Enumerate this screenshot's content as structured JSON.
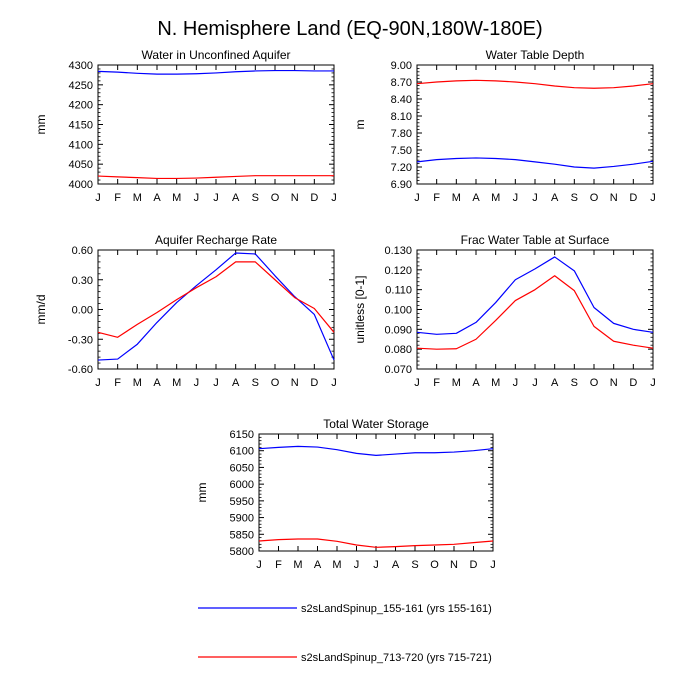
{
  "page_title": "N. Hemisphere Land (EQ-90N,180W-180E)",
  "colors": {
    "series_1": "#0000ff",
    "series_2": "#ff0000",
    "axis": "#000000"
  },
  "chart_data": [
    {
      "type": "line",
      "title": "Water in Unconfined Aquifer",
      "ylabel": "mm",
      "categories": [
        "J",
        "F",
        "M",
        "A",
        "M",
        "J",
        "J",
        "A",
        "S",
        "O",
        "N",
        "D",
        "J"
      ],
      "ylim": [
        4000,
        4300
      ],
      "yticks": [
        4000,
        4050,
        4100,
        4150,
        4200,
        4250,
        4300
      ],
      "ytick_labels": [
        "4000",
        "4050",
        "4100",
        "4150",
        "4200",
        "4250",
        "4300"
      ],
      "series": [
        {
          "name": "s2sLandSpinup_155-161 (yrs 155-161)",
          "color": "#0000ff",
          "values": [
            4284,
            4282,
            4279,
            4277,
            4277,
            4278,
            4280,
            4283,
            4285,
            4286,
            4286,
            4285,
            4285
          ]
        },
        {
          "name": "s2sLandSpinup_713-720 (yrs 715-721)",
          "color": "#ff0000",
          "values": [
            4020,
            4018,
            4016,
            4014,
            4014,
            4015,
            4017,
            4019,
            4021,
            4021,
            4021,
            4021,
            4021
          ]
        }
      ]
    },
    {
      "type": "line",
      "title": "Water Table Depth",
      "ylabel": "m",
      "categories": [
        "J",
        "F",
        "M",
        "A",
        "M",
        "J",
        "J",
        "A",
        "S",
        "O",
        "N",
        "D",
        "J"
      ],
      "ylim": [
        6.9,
        9.0
      ],
      "yticks": [
        6.9,
        7.2,
        7.5,
        7.8,
        8.1,
        8.4,
        8.7,
        9.0
      ],
      "ytick_labels": [
        "6.90",
        "7.20",
        "7.50",
        "7.80",
        "8.10",
        "8.40",
        "8.70",
        "9.00"
      ],
      "series": [
        {
          "name": "s2sLandSpinup_155-161 (yrs 155-161)",
          "color": "#0000ff",
          "values": [
            7.29,
            7.33,
            7.35,
            7.36,
            7.35,
            7.33,
            7.29,
            7.25,
            7.2,
            7.18,
            7.21,
            7.25,
            7.3
          ]
        },
        {
          "name": "s2sLandSpinup_713-720 (yrs 715-721)",
          "color": "#ff0000",
          "values": [
            8.67,
            8.7,
            8.72,
            8.73,
            8.72,
            8.7,
            8.67,
            8.63,
            8.6,
            8.59,
            8.6,
            8.63,
            8.67
          ]
        }
      ]
    },
    {
      "type": "line",
      "title": "Aquifer Recharge Rate",
      "ylabel": "mm/d",
      "categories": [
        "J",
        "F",
        "M",
        "A",
        "M",
        "J",
        "J",
        "A",
        "S",
        "O",
        "N",
        "D",
        "J"
      ],
      "ylim": [
        -0.6,
        0.6
      ],
      "yticks": [
        -0.6,
        -0.3,
        0.0,
        0.3,
        0.6
      ],
      "ytick_labels": [
        "-0.60",
        "-0.30",
        "0.00",
        "0.30",
        "0.60"
      ],
      "series": [
        {
          "name": "s2sLandSpinup_155-161 (yrs 155-161)",
          "color": "#0000ff",
          "values": [
            -0.51,
            -0.5,
            -0.35,
            -0.13,
            0.07,
            0.24,
            0.4,
            0.57,
            0.56,
            0.34,
            0.13,
            -0.05,
            -0.51
          ]
        },
        {
          "name": "s2sLandSpinup_713-720 (yrs 715-721)",
          "color": "#ff0000",
          "values": [
            -0.23,
            -0.28,
            -0.15,
            -0.03,
            0.1,
            0.22,
            0.33,
            0.48,
            0.48,
            0.3,
            0.12,
            0.01,
            -0.23
          ]
        }
      ]
    },
    {
      "type": "line",
      "title": "Frac Water Table at Surface",
      "ylabel": "unitless [0-1]",
      "categories": [
        "J",
        "F",
        "M",
        "A",
        "M",
        "J",
        "J",
        "A",
        "S",
        "O",
        "N",
        "D",
        "J"
      ],
      "ylim": [
        0.07,
        0.13
      ],
      "yticks": [
        0.07,
        0.08,
        0.09,
        0.1,
        0.11,
        0.12,
        0.13
      ],
      "ytick_labels": [
        "0.070",
        "0.080",
        "0.090",
        "0.100",
        "0.110",
        "0.120",
        "0.130"
      ],
      "series": [
        {
          "name": "s2sLandSpinup_155-161 (yrs 155-161)",
          "color": "#0000ff",
          "values": [
            0.0885,
            0.0875,
            0.088,
            0.0935,
            0.1035,
            0.115,
            0.1205,
            0.1265,
            0.1195,
            0.101,
            0.093,
            0.09,
            0.0885
          ]
        },
        {
          "name": "s2sLandSpinup_713-720 (yrs 715-721)",
          "color": "#ff0000",
          "values": [
            0.0805,
            0.08,
            0.0802,
            0.085,
            0.0945,
            0.1045,
            0.11,
            0.117,
            0.1095,
            0.0915,
            0.084,
            0.082,
            0.0805
          ]
        }
      ]
    },
    {
      "type": "line",
      "title": "Total Water Storage",
      "ylabel": "mm",
      "categories": [
        "J",
        "F",
        "M",
        "A",
        "M",
        "J",
        "J",
        "A",
        "S",
        "O",
        "N",
        "D",
        "J"
      ],
      "ylim": [
        5800,
        6150
      ],
      "yticks": [
        5800,
        5850,
        5900,
        5950,
        6000,
        6050,
        6100,
        6150
      ],
      "ytick_labels": [
        "5800",
        "5850",
        "5900",
        "5950",
        "6000",
        "6050",
        "6100",
        "6150"
      ],
      "series": [
        {
          "name": "s2sLandSpinup_155-161 (yrs 155-161)",
          "color": "#0000ff",
          "values": [
            6106,
            6110,
            6113,
            6111,
            6103,
            6092,
            6086,
            6090,
            6094,
            6094,
            6096,
            6100,
            6106
          ]
        },
        {
          "name": "s2sLandSpinup_713-720 (yrs 715-721)",
          "color": "#ff0000",
          "values": [
            5830,
            5834,
            5836,
            5836,
            5829,
            5818,
            5811,
            5813,
            5816,
            5818,
            5820,
            5825,
            5830
          ]
        }
      ]
    }
  ],
  "legend": [
    {
      "label": "s2sLandSpinup_155-161 (yrs 155-161)",
      "color": "#0000ff"
    },
    {
      "label": "s2sLandSpinup_713-720 (yrs 715-721)",
      "color": "#ff0000"
    }
  ]
}
